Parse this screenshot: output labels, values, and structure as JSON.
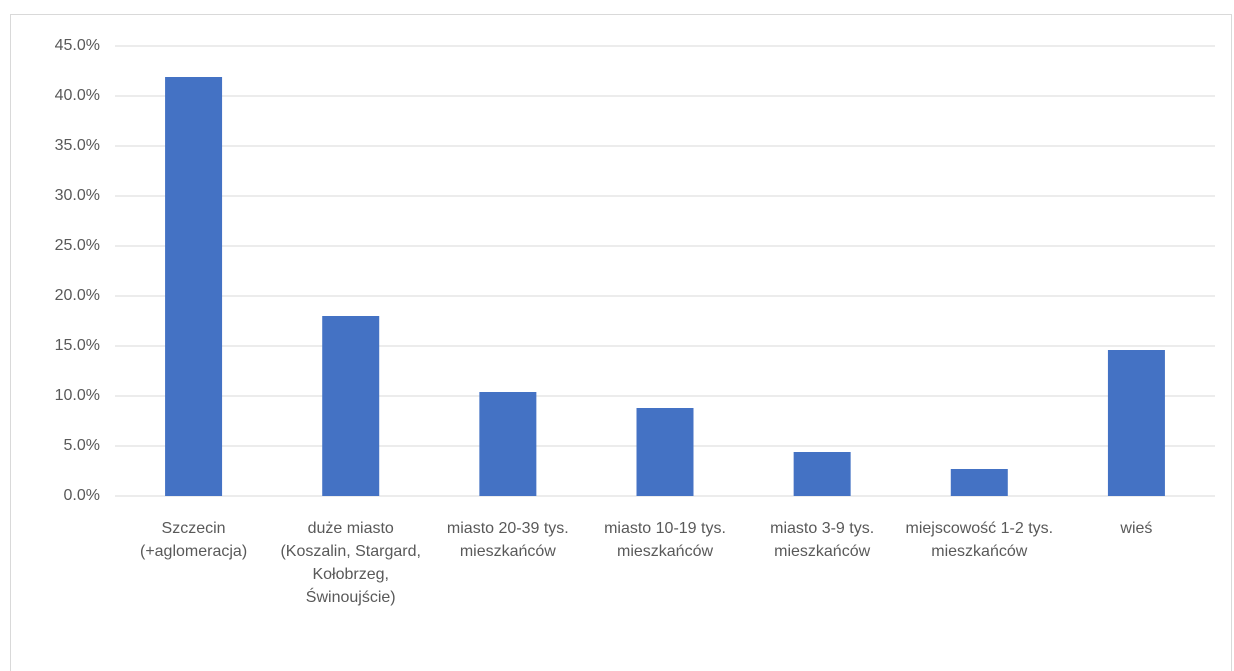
{
  "chart_data": {
    "type": "bar",
    "categories": [
      "Szczecin (+aglomeracja)",
      "duże miasto (Koszalin, Stargard, Kołobrzeg, Świnoujście)",
      "miasto 20-39 tys. mieszkańców",
      "miasto 10-19 tys. mieszkańców",
      "miasto 3-9 tys. mieszkańców",
      "miejscowość 1-2 tys. mieszkańców",
      "wieś"
    ],
    "values": [
      41.9,
      18.0,
      10.4,
      8.8,
      4.4,
      2.7,
      14.6
    ],
    "color": "#4472c4",
    "ylim": [
      0,
      45
    ],
    "yticks": [
      {
        "value": 0,
        "label": "0.0%"
      },
      {
        "value": 5,
        "label": "5.0%"
      },
      {
        "value": 10,
        "label": "10.0%"
      },
      {
        "value": 15,
        "label": "15.0%"
      },
      {
        "value": 20,
        "label": "20.0%"
      },
      {
        "value": 25,
        "label": "25.0%"
      },
      {
        "value": 30,
        "label": "30.0%"
      },
      {
        "value": 35,
        "label": "35.0%"
      },
      {
        "value": 40,
        "label": "40.0%"
      },
      {
        "value": 45,
        "label": "45.0%"
      }
    ],
    "grid": true
  }
}
